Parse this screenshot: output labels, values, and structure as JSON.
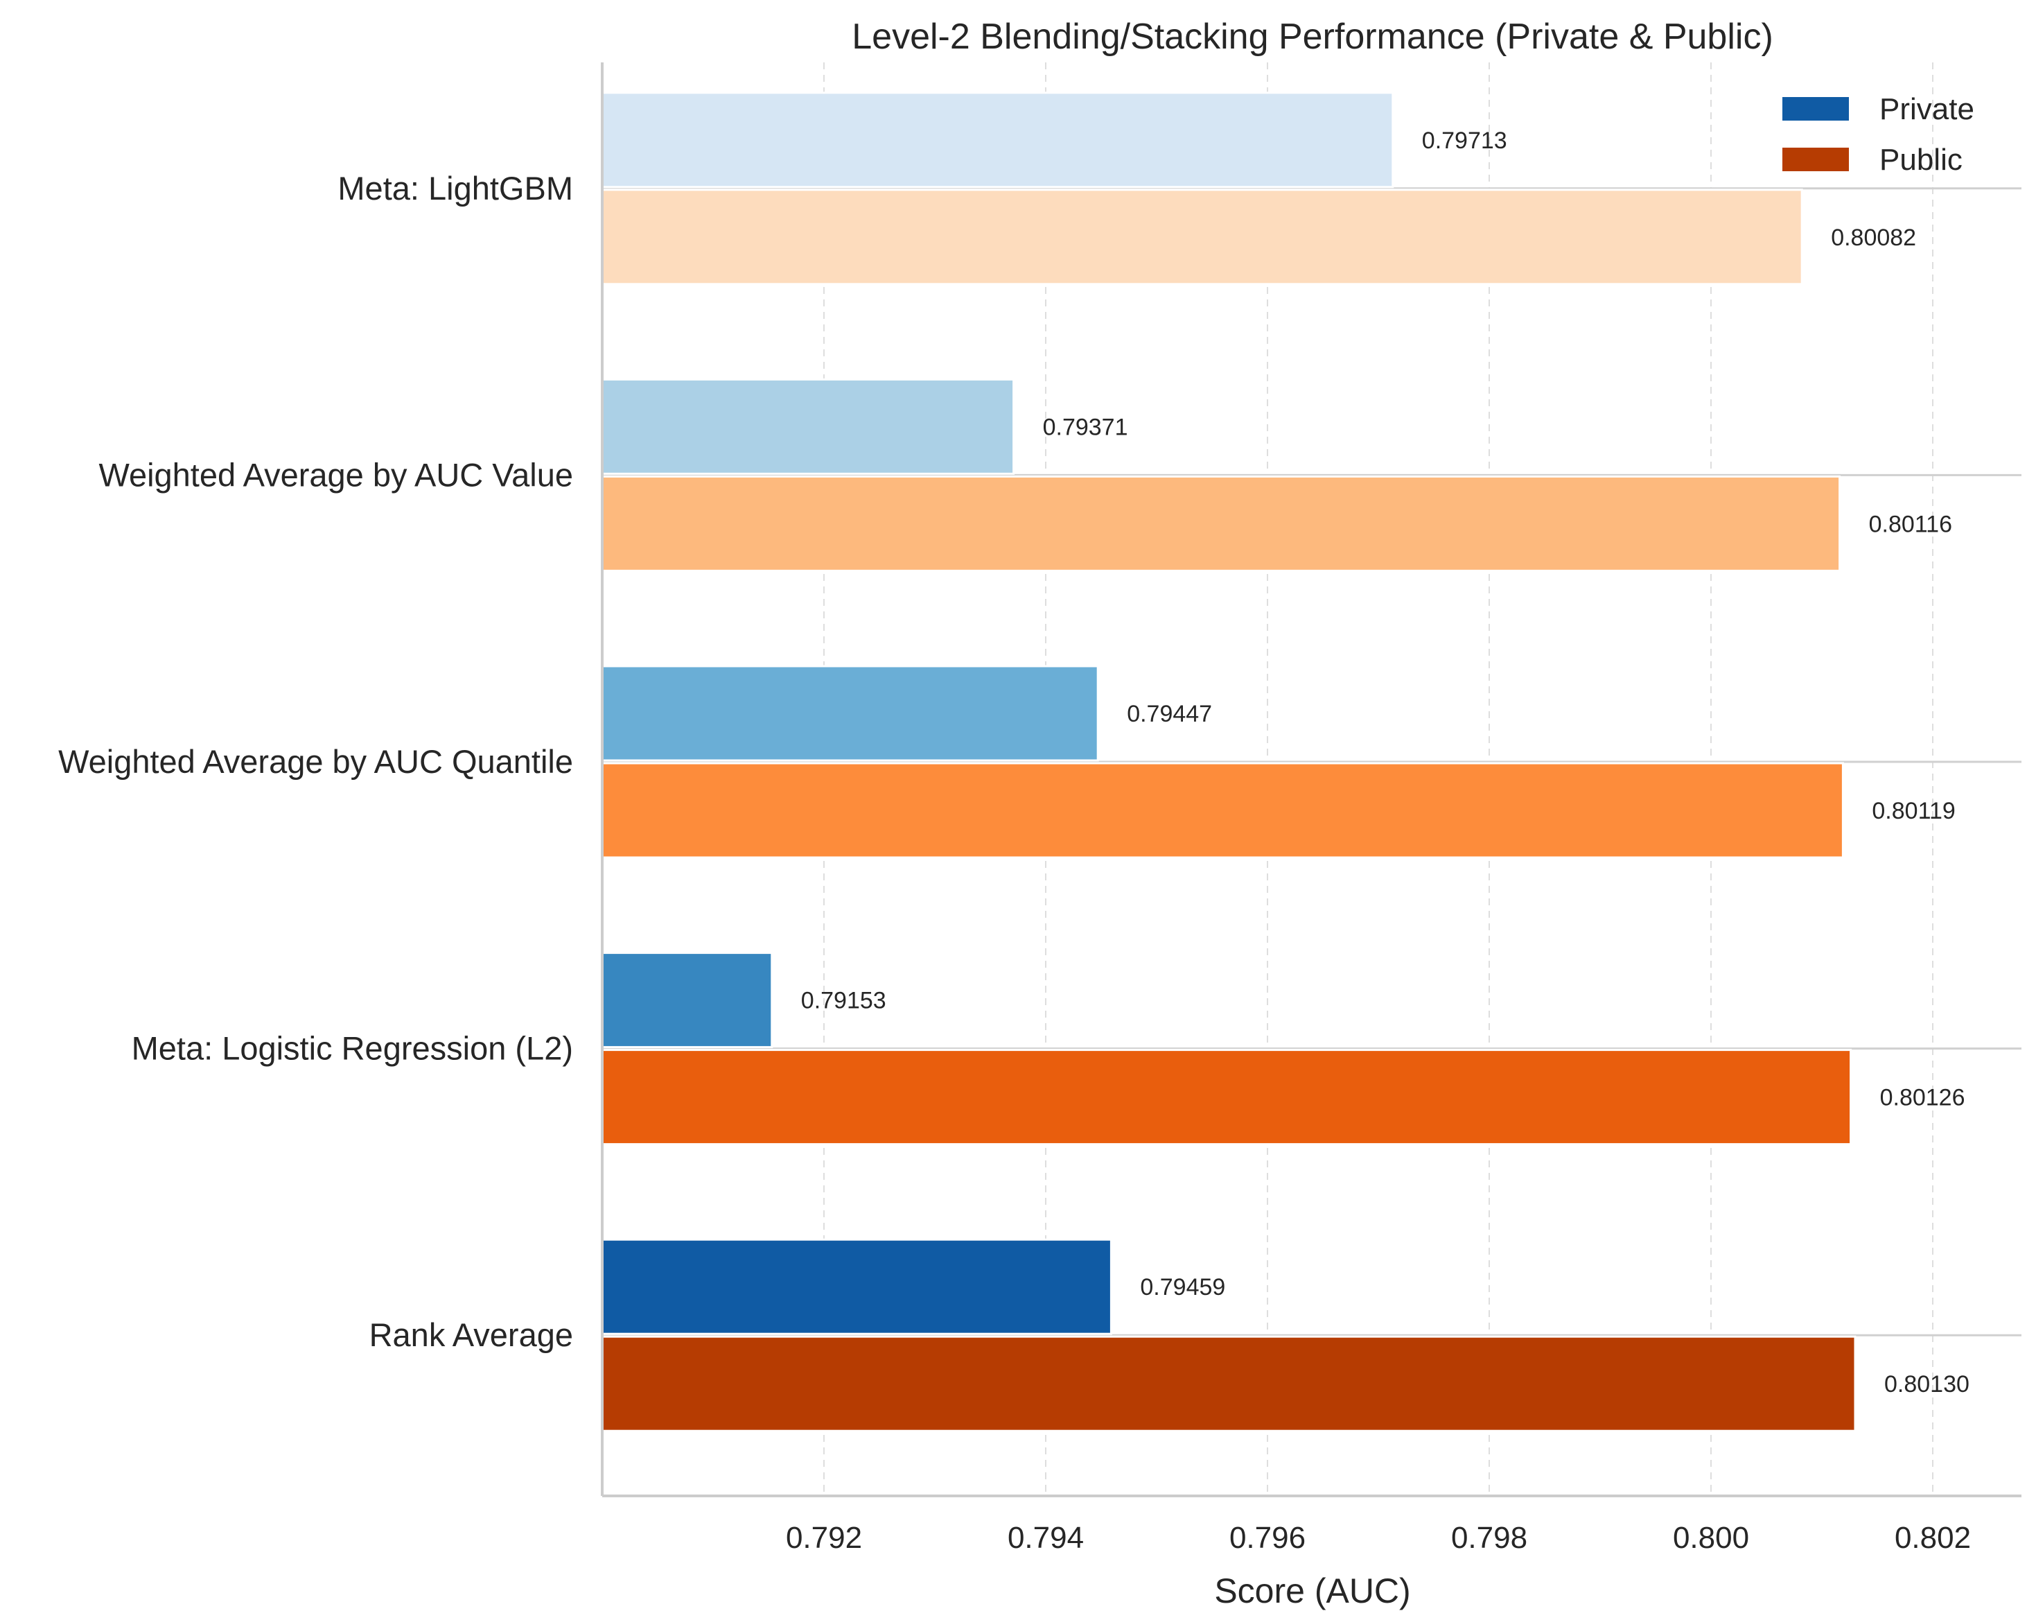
{
  "chart_data": {
    "type": "bar",
    "orientation": "horizontal",
    "title": "Level-2 Blending/Stacking Performance (Private & Public)",
    "xlabel": "Score (AUC)",
    "ylabel": "",
    "xlim": [
      0.79,
      0.8028
    ],
    "xticks": [
      "0.792",
      "0.794",
      "0.796",
      "0.798",
      "0.800",
      "0.802"
    ],
    "categories": [
      "Meta: LightGBM",
      "Weighted Average by AUC Value",
      "Weighted Average by AUC Quantile",
      "Meta: Logistic Regression (L2)",
      "Rank Average"
    ],
    "series": [
      {
        "name": "Private",
        "values": [
          0.79713,
          0.79371,
          0.79447,
          0.79153,
          0.79459
        ],
        "labels": [
          "0.79713",
          "0.79371",
          "0.79447",
          "0.79153",
          "0.79459"
        ],
        "colors": [
          "#d6e6f4",
          "#abd0e6",
          "#6aaed6",
          "#3787c0",
          "#105ba4"
        ],
        "legend_color": "#105ba4"
      },
      {
        "name": "Public",
        "values": [
          0.80082,
          0.80116,
          0.80119,
          0.80126,
          0.8013
        ],
        "labels": [
          "0.80082",
          "0.80116",
          "0.80119",
          "0.80126",
          "0.80130"
        ],
        "colors": [
          "#fddcbd",
          "#fdb97d",
          "#fd8c3b",
          "#e95e0d",
          "#b63c02"
        ],
        "legend_color": "#b63c02"
      }
    ],
    "grid": "vertical dashed",
    "legend_position": "top-right"
  }
}
